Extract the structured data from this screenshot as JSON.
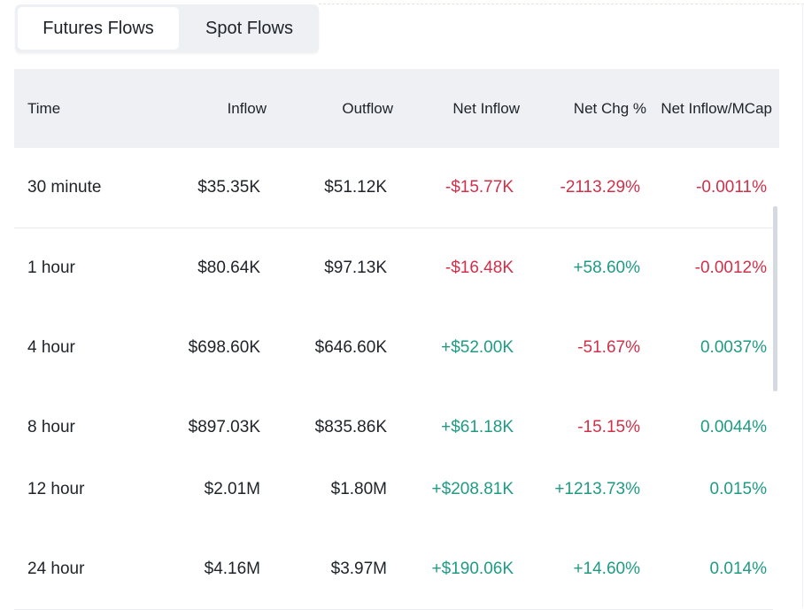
{
  "tabs": [
    {
      "label": "Futures Flows",
      "active": true
    },
    {
      "label": "Spot Flows",
      "active": false
    }
  ],
  "columns": {
    "time": "Time",
    "inflow": "Inflow",
    "outflow": "Outflow",
    "net_inflow": "Net Inflow",
    "net_chg": "Net Chg %",
    "net_inflow_mcap": "Net Inflow/MCap"
  },
  "rows": [
    {
      "time": "30 minute",
      "inflow": "$35.35K",
      "outflow": "$51.12K",
      "net_inflow": "-$15.77K",
      "net_chg": "-2113.29%",
      "mcap": "-0.0011%"
    },
    {
      "time": "1 hour",
      "inflow": "$80.64K",
      "outflow": "$97.13K",
      "net_inflow": "-$16.48K",
      "net_chg": "+58.60%",
      "mcap": "-0.0012%"
    },
    {
      "time": "4 hour",
      "inflow": "$698.60K",
      "outflow": "$646.60K",
      "net_inflow": "+$52.00K",
      "net_chg": "-51.67%",
      "mcap": "0.0037%"
    },
    {
      "time": "8 hour",
      "inflow": "$897.03K",
      "outflow": "$835.86K",
      "net_inflow": "+$61.18K",
      "net_chg": "-15.15%",
      "mcap": "0.0044%"
    },
    {
      "time": "12 hour",
      "inflow": "$2.01M",
      "outflow": "$1.80M",
      "net_inflow": "+$208.81K",
      "net_chg": "+1213.73%",
      "mcap": "0.015%"
    },
    {
      "time": "24 hour",
      "inflow": "$4.16M",
      "outflow": "$3.97M",
      "net_inflow": "+$190.06K",
      "net_chg": "+14.60%",
      "mcap": "0.014%"
    }
  ],
  "colors": {
    "negative": "#cf304a",
    "positive": "#1f9b84",
    "header_bg": "#eef0f4",
    "tab_bg": "#eef0f3"
  }
}
